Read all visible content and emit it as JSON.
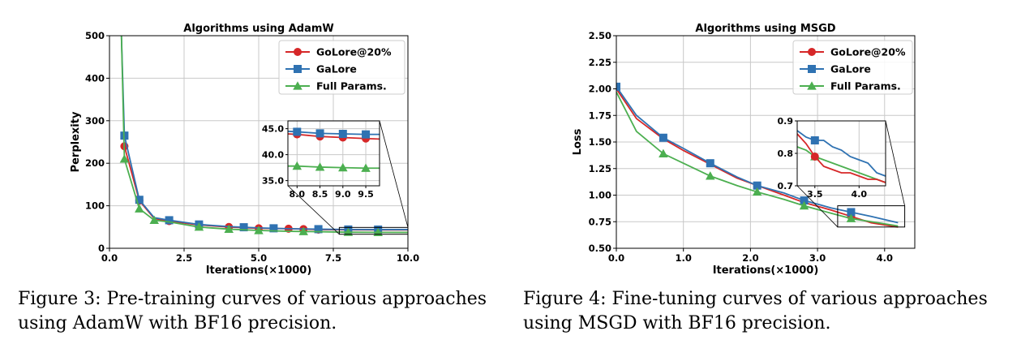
{
  "colors": {
    "golore": "#d62728",
    "galore": "#2f72b2",
    "full": "#4caf50"
  },
  "captions": [
    {
      "line1": "Figure 3:  Pre-training curves of various approaches",
      "line2": "using AdamW with BF16 precision."
    },
    {
      "line1": "Figure 4:  Fine-tuning curves of various approaches",
      "line2": "using MSGD with BF16 precision."
    }
  ],
  "chart_data": [
    {
      "type": "line",
      "title": "Algorithms using AdamW",
      "xlabel": "Iterations(×1000)",
      "ylabel": "Perplexity",
      "xlim": [
        0,
        10
      ],
      "ylim": [
        0,
        500
      ],
      "xticks": [
        "0.0",
        "2.5",
        "5.0",
        "7.5",
        "10.0"
      ],
      "xtick_values": [
        0,
        2.5,
        5,
        7.5,
        10
      ],
      "yticks": [
        "0",
        "100",
        "200",
        "300",
        "400",
        "500"
      ],
      "ytick_values": [
        0,
        100,
        200,
        300,
        400,
        500
      ],
      "grid": true,
      "legend": "top-right",
      "series": [
        {
          "name": "GoLore@20%",
          "color_key": "golore",
          "marker": "circle",
          "x": [
            0.5,
            1.0,
            1.5,
            2.0,
            3.0,
            4.0,
            5.0,
            6.0,
            7.0,
            8.0,
            9.0,
            10.0
          ],
          "y": [
            240,
            112,
            70,
            64,
            55,
            50,
            47,
            46,
            44,
            43.5,
            43.3,
            43.3
          ],
          "marker_x": [
            0.5,
            1.0,
            2.0,
            3.0,
            4.0,
            5.0,
            6.0,
            6.5,
            7.0,
            8.0,
            9.0
          ]
        },
        {
          "name": "GaLore",
          "color_key": "galore",
          "marker": "square",
          "x": [
            0.4,
            0.5,
            1.0,
            1.5,
            2.0,
            3.0,
            4.0,
            5.0,
            6.0,
            7.0,
            8.0,
            9.0,
            10.0
          ],
          "y": [
            500,
            265,
            114,
            72,
            66,
            56,
            51,
            48,
            46,
            45,
            44.2,
            44.0,
            44.0
          ],
          "marker_x": [
            0.5,
            1.0,
            2.0,
            3.0,
            4.5,
            5.5,
            7.0,
            8.0,
            9.0
          ]
        },
        {
          "name": "Full Params.",
          "color_key": "full",
          "marker": "triangle",
          "x": [
            0.4,
            0.5,
            1.0,
            1.5,
            2.0,
            3.0,
            4.0,
            5.0,
            6.0,
            7.0,
            8.0,
            9.0,
            10.0
          ],
          "y": [
            500,
            210,
            93,
            66,
            62,
            50,
            45,
            42,
            40,
            39,
            37.8,
            37.5,
            37.3
          ],
          "marker_x": [
            0.5,
            1.0,
            1.5,
            3.0,
            4.0,
            5.0,
            6.5,
            8.0,
            9.0
          ]
        }
      ],
      "inset": {
        "xlim": [
          7.8,
          9.8
        ],
        "ylim": [
          34,
          46.5
        ],
        "xticks": [
          "8.0",
          "8.5",
          "9.0",
          "9.5"
        ],
        "xtick_values": [
          8.0,
          8.5,
          9.0,
          9.5
        ],
        "yticks": [
          "35.0",
          "40.0",
          "45.0"
        ],
        "ytick_values": [
          35,
          40,
          45
        ],
        "series": [
          {
            "color_key": "golore",
            "marker": "circle",
            "x": [
              7.8,
              8.0,
              8.5,
              9.0,
              9.5,
              9.8
            ],
            "y": [
              44.0,
              43.9,
              43.5,
              43.3,
              43.1,
              43.0
            ],
            "marker_x": [
              8.0,
              8.5,
              9.0,
              9.5
            ]
          },
          {
            "color_key": "galore",
            "marker": "square",
            "x": [
              7.8,
              8.0,
              8.5,
              9.0,
              9.5,
              9.8
            ],
            "y": [
              44.5,
              44.4,
              44.1,
              44.0,
              43.9,
              43.9
            ],
            "marker_x": [
              8.0,
              8.5,
              9.0,
              9.5
            ]
          },
          {
            "color_key": "full",
            "marker": "triangle",
            "x": [
              7.8,
              8.0,
              8.5,
              9.0,
              9.5,
              9.8
            ],
            "y": [
              37.8,
              37.8,
              37.6,
              37.5,
              37.4,
              37.4
            ],
            "marker_x": [
              8.0,
              8.5,
              9.0,
              9.5
            ]
          }
        ]
      }
    },
    {
      "type": "line",
      "title": "Algorithms using MSGD",
      "xlabel": "Iterations(×1000)",
      "ylabel": "Loss",
      "xlim": [
        0,
        4.45
      ],
      "ylim": [
        0.5,
        2.5
      ],
      "xticks": [
        "0.0",
        "1.0",
        "2.0",
        "3.0",
        "4.0"
      ],
      "xtick_values": [
        0,
        1,
        2,
        3,
        4
      ],
      "yticks": [
        "0.50",
        "0.75",
        "1.00",
        "1.25",
        "1.50",
        "1.75",
        "2.00",
        "2.25",
        "2.50"
      ],
      "ytick_values": [
        0.5,
        0.75,
        1.0,
        1.25,
        1.5,
        1.75,
        2.0,
        2.25,
        2.5
      ],
      "grid": true,
      "legend": "top-right",
      "series": [
        {
          "name": "GoLore@20%",
          "color_key": "golore",
          "marker": "circle",
          "x": [
            0.0,
            0.3,
            0.7,
            1.0,
            1.4,
            1.8,
            2.1,
            2.5,
            2.8,
            3.2,
            3.5,
            3.8,
            4.2
          ],
          "y": [
            2.0,
            1.72,
            1.53,
            1.42,
            1.29,
            1.16,
            1.09,
            1.0,
            0.93,
            0.86,
            0.8,
            0.74,
            0.7
          ],
          "marker_x": [
            3.5
          ]
        },
        {
          "name": "GaLore",
          "color_key": "galore",
          "marker": "square",
          "x": [
            0.0,
            0.3,
            0.7,
            1.0,
            1.4,
            1.8,
            2.1,
            2.5,
            2.8,
            3.2,
            3.5,
            3.8,
            4.2
          ],
          "y": [
            2.02,
            1.75,
            1.54,
            1.44,
            1.3,
            1.17,
            1.09,
            1.02,
            0.95,
            0.88,
            0.84,
            0.8,
            0.74
          ],
          "marker_x": [
            0.0,
            0.7,
            1.4,
            2.1,
            2.8,
            3.5
          ]
        },
        {
          "name": "Full Params.",
          "color_key": "full",
          "marker": "triangle",
          "x": [
            0.0,
            0.3,
            0.7,
            1.0,
            1.4,
            1.8,
            2.1,
            2.5,
            2.8,
            3.2,
            3.5,
            3.8,
            4.2
          ],
          "y": [
            1.97,
            1.6,
            1.39,
            1.3,
            1.18,
            1.09,
            1.03,
            0.96,
            0.9,
            0.83,
            0.78,
            0.75,
            0.71
          ],
          "marker_x": [
            0.7,
            1.4,
            2.1,
            2.8,
            3.5
          ]
        }
      ],
      "inset": {
        "xlim": [
          3.3,
          4.3
        ],
        "ylim": [
          0.7,
          0.9
        ],
        "xticks": [
          "3.5",
          "4.0"
        ],
        "xtick_values": [
          3.5,
          4.0
        ],
        "yticks": [
          "0.7",
          "0.8",
          "0.9"
        ],
        "ytick_values": [
          0.7,
          0.8,
          0.9
        ],
        "series": [
          {
            "color_key": "galore",
            "marker": "square",
            "x": [
              3.3,
              3.4,
              3.5,
              3.6,
              3.7,
              3.8,
              3.9,
              4.0,
              4.1,
              4.2,
              4.3
            ],
            "y": [
              0.87,
              0.85,
              0.84,
              0.84,
              0.82,
              0.81,
              0.79,
              0.78,
              0.77,
              0.74,
              0.73
            ],
            "marker_x": [
              3.5
            ]
          },
          {
            "color_key": "full",
            "marker": "triangle",
            "x": [
              3.3,
              3.4,
              3.5,
              3.6,
              3.7,
              3.8,
              3.9,
              4.0,
              4.1,
              4.2,
              4.3
            ],
            "y": [
              0.82,
              0.81,
              0.79,
              0.78,
              0.77,
              0.76,
              0.75,
              0.74,
              0.73,
              0.72,
              0.71
            ],
            "marker_x": [
              3.5
            ]
          },
          {
            "color_key": "golore",
            "marker": "circle",
            "x": [
              3.3,
              3.4,
              3.5,
              3.6,
              3.7,
              3.8,
              3.9,
              4.0,
              4.1,
              4.2,
              4.3
            ],
            "y": [
              0.86,
              0.83,
              0.79,
              0.76,
              0.75,
              0.74,
              0.74,
              0.73,
              0.72,
              0.72,
              0.71
            ],
            "marker_x": [
              3.5
            ]
          }
        ]
      }
    }
  ]
}
